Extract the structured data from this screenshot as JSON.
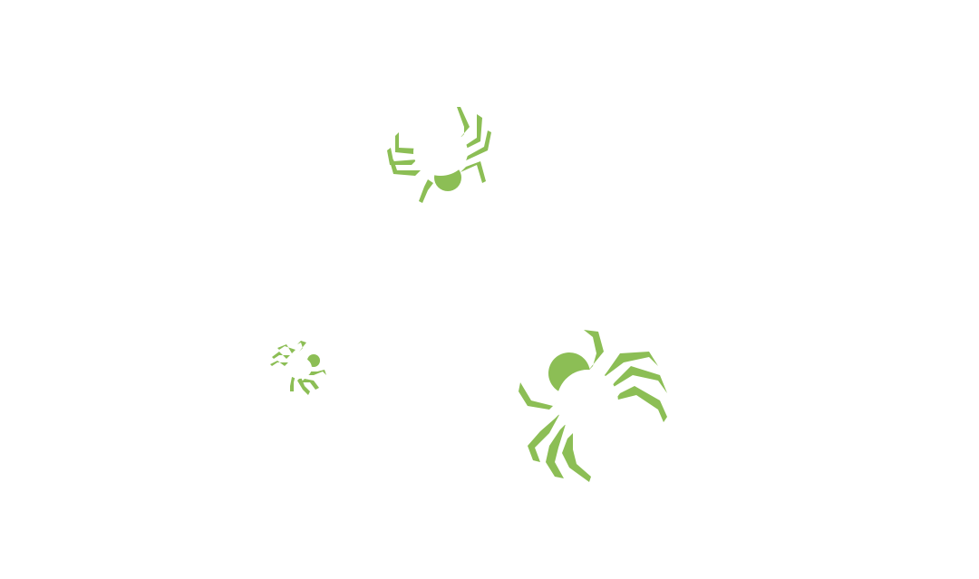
{
  "game": {
    "background_color": "#ffffff",
    "creature_color": "#8cbe55",
    "creature_icon": "spider-icon",
    "creature_count": 3
  }
}
